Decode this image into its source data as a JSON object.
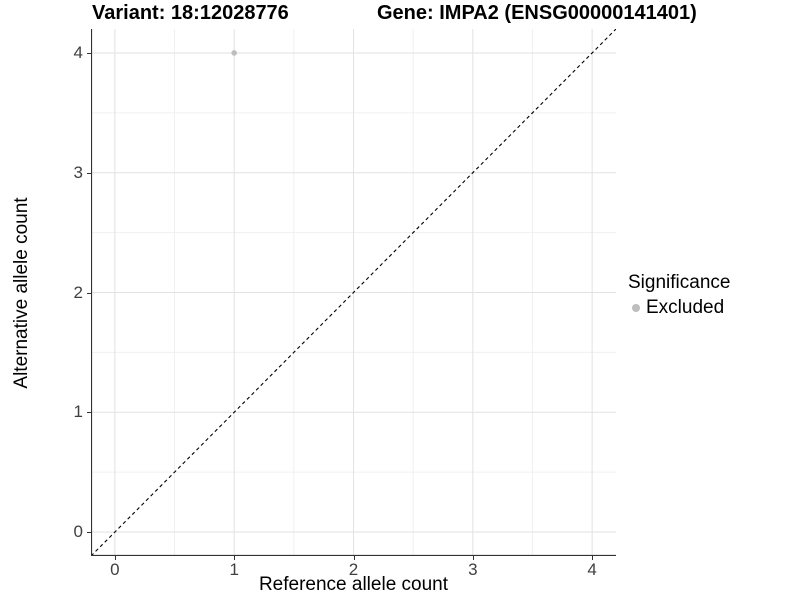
{
  "header": {
    "variant_title": "Variant: 18:12028776",
    "gene_title": "Gene: IMPA2 (ENSG00000141401)"
  },
  "chart_data": {
    "type": "scatter",
    "xlabel": "Reference allele count",
    "ylabel": "Alternative allele count",
    "xlim": [
      -0.2,
      4.2
    ],
    "ylim": [
      -0.2,
      4.2
    ],
    "xticks": [
      0,
      1,
      2,
      3,
      4
    ],
    "yticks": [
      0,
      1,
      2,
      3,
      4
    ],
    "xticks_minor": [
      0.5,
      1.5,
      2.5,
      3.5
    ],
    "yticks_minor": [
      0.5,
      1.5,
      2.5,
      3.5
    ],
    "grid": "major and minor gridlines, light gray on white",
    "points": [
      {
        "x": 1,
        "y": 4,
        "series": "Excluded"
      }
    ],
    "reference_line": {
      "slope": 1,
      "intercept": 0,
      "style": "dashed"
    },
    "legend": {
      "title": "Significance",
      "position": "right",
      "items": [
        {
          "label": "Excluded",
          "color": "#bebebe"
        }
      ]
    }
  },
  "colors": {
    "background": "#ffffff",
    "point_excluded": "#bebebe",
    "grid_major": "#e2e2e2",
    "grid_minor": "#f0f0f0",
    "axis_line": "#333333",
    "reference_line": "#000000",
    "tick_text": "#404040",
    "title_text": "#000000"
  }
}
